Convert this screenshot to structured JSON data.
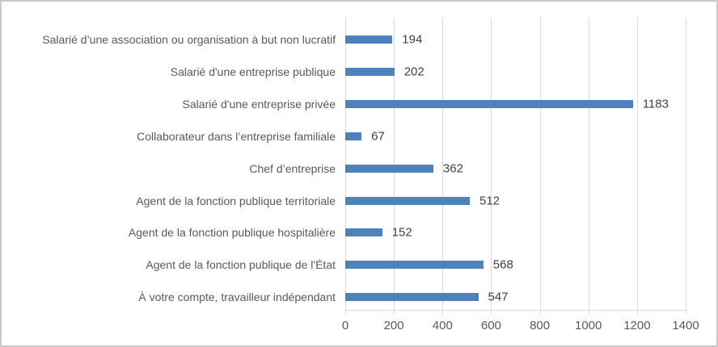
{
  "frame": {
    "background": "#FFFFFF",
    "border_color": "#C9C9C9"
  },
  "chart_data": {
    "type": "bar",
    "orientation": "horizontal",
    "title": "",
    "xlabel": "",
    "ylabel": "",
    "legend": "none",
    "grid": true,
    "categories": [
      "Salarié d’une association ou organisation à but non lucratif",
      "Salarié d'une entreprise publique",
      "Salarié d'une entreprise privée",
      "Collaborateur dans l’entreprise familiale",
      "Chef d’entreprise",
      "Agent de la fonction publique territoriale",
      "Agent de la fonction publique hospitalière",
      "Agent de la fonction publique de l'État",
      "À votre compte, travailleur indépendant"
    ],
    "values": [
      194,
      202,
      1183,
      67,
      362,
      512,
      152,
      568,
      547
    ],
    "xlim": [
      0,
      1400
    ],
    "x_ticks": [
      0,
      200,
      400,
      600,
      800,
      1000,
      1200,
      1400
    ],
    "bar_color": "#4F81BD",
    "gridline_color": "#D9D9D9",
    "axis_line_color": "#D9D9D9",
    "category_label_color": "#595959",
    "tick_label_color": "#595959",
    "value_label_color": "#404040"
  }
}
